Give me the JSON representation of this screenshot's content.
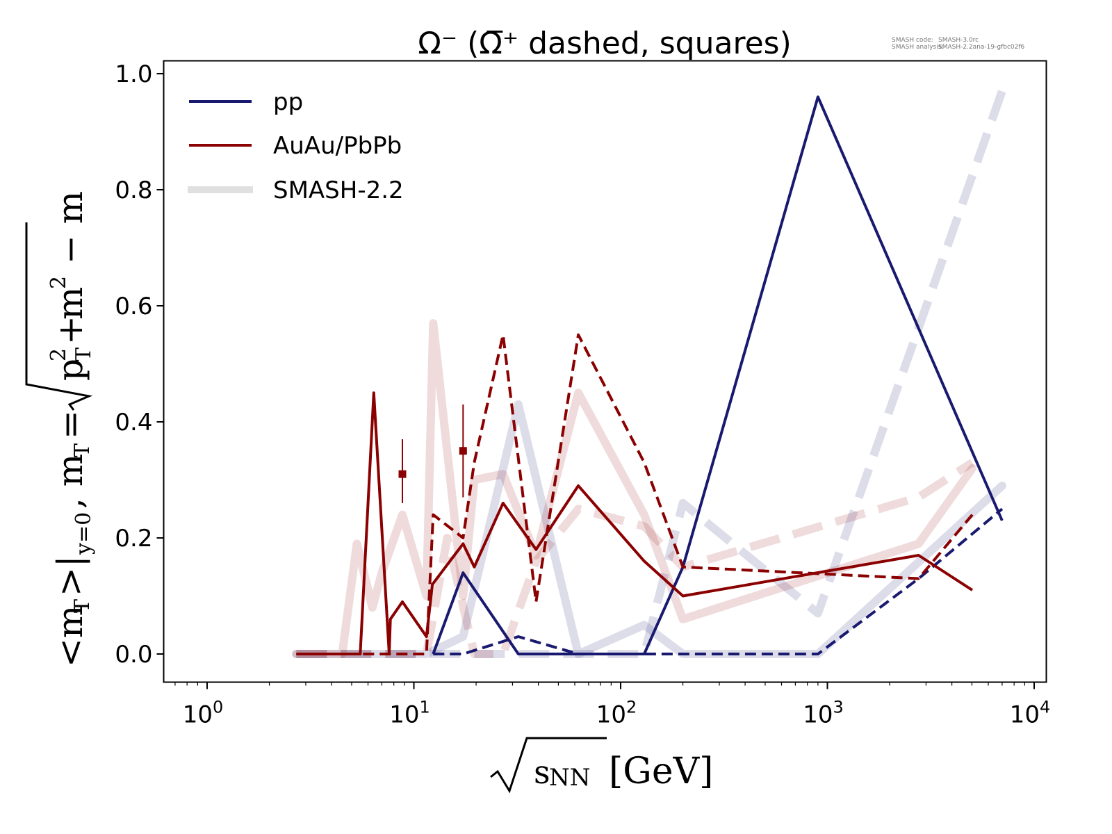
{
  "chart_data": {
    "type": "line",
    "title": "Ω⁻ (Ω̅⁺ dashed, squares)",
    "xlabel": "√s_NN [GeV]",
    "ylabel": "<m_T>|_{y=0}, m_T = √(p_T² + m²) − m",
    "xscale": "log",
    "xlim": [
      0.65,
      11000
    ],
    "ylim": [
      -0.05,
      1.04
    ],
    "x_ticks": [
      {
        "value": 1,
        "base": "10",
        "exp": "0"
      },
      {
        "value": 10,
        "base": "10",
        "exp": "1"
      },
      {
        "value": 100,
        "base": "10",
        "exp": "2"
      },
      {
        "value": 1000,
        "base": "10",
        "exp": "3"
      },
      {
        "value": 10000,
        "base": "10",
        "exp": "4"
      }
    ],
    "y_ticks": [
      "0.0",
      "0.2",
      "0.4",
      "0.6",
      "0.8",
      "1.0"
    ],
    "y_tick_values": [
      0.0,
      0.2,
      0.4,
      0.6,
      0.8,
      1.0
    ],
    "legend": {
      "position": "top-left",
      "entries": [
        {
          "label": "pp",
          "color": "#191970",
          "style": "line"
        },
        {
          "label": "AuAu/PbPb",
          "color": "#8b0000",
          "style": "line"
        },
        {
          "label": "SMASH-2.2",
          "color": "#e0e0e0",
          "style": "thick-line"
        }
      ]
    },
    "series": [
      {
        "name": "SMASH-2.2 pp Ω⁻",
        "color": "#191970",
        "opacity": 0.15,
        "role": "smash",
        "dashed": false,
        "x": [
          2.7,
          7.7,
          11.5,
          17.3,
          32,
          62.4,
          130,
          200,
          900,
          7000
        ],
        "y": [
          0.0,
          0.0,
          0.0,
          0.03,
          0.43,
          0.0,
          0.05,
          0.0,
          0.0,
          0.29
        ]
      },
      {
        "name": "SMASH-2.2 pp Ω̅⁺",
        "color": "#191970",
        "opacity": 0.15,
        "role": "smash",
        "dashed": true,
        "x": [
          2.7,
          7.7,
          11.5,
          17.3,
          27,
          62.4,
          130,
          200,
          900,
          7000
        ],
        "y": [
          0.0,
          0.0,
          0.0,
          0.0,
          0.0,
          0.0,
          0.0,
          0.26,
          0.07,
          0.97
        ]
      },
      {
        "name": "SMASH-2.2 AuAu/PbPb Ω⁻",
        "color": "#8b0000",
        "opacity": 0.14,
        "role": "smash",
        "dashed": false,
        "x": [
          2.7,
          4.5,
          5.3,
          6.3,
          7.0,
          8.8,
          11.5,
          12.4,
          17.3,
          19.6,
          27,
          39,
          62.4,
          130,
          200,
          2760,
          5020
        ],
        "y": [
          0.0,
          0.0,
          0.19,
          0.08,
          0.14,
          0.24,
          0.1,
          0.57,
          0.1,
          0.3,
          0.31,
          0.17,
          0.45,
          0.24,
          0.06,
          0.19,
          0.32
        ]
      },
      {
        "name": "SMASH-2.2 AuAu/PbPb Ω̅⁺",
        "color": "#8b0000",
        "opacity": 0.14,
        "role": "smash",
        "dashed": true,
        "x": [
          2.7,
          11.5,
          14.5,
          19.6,
          27,
          39,
          62.4,
          130,
          200,
          2760,
          5020
        ],
        "y": [
          0.0,
          0.0,
          0.2,
          0.0,
          0.0,
          0.16,
          0.25,
          0.22,
          0.15,
          0.27,
          0.33
        ]
      },
      {
        "name": "pp Ω⁻",
        "color": "#191970",
        "opacity": 1,
        "role": "data",
        "dashed": false,
        "x": [
          12.4,
          17.3,
          32,
          62.4,
          130,
          200,
          900,
          7000
        ],
        "y": [
          0.0,
          0.14,
          0.0,
          0.0,
          0.0,
          0.15,
          0.96,
          0.23
        ]
      },
      {
        "name": "pp Ω̅⁺",
        "color": "#191970",
        "opacity": 1,
        "role": "data",
        "dashed": true,
        "x": [
          12.4,
          17.3,
          32,
          62.4,
          130,
          200,
          900,
          2760,
          7000
        ],
        "y": [
          0.0,
          0.0,
          0.03,
          0.0,
          0.0,
          0.0,
          0.0,
          0.13,
          0.25
        ]
      },
      {
        "name": "AuAu/PbPb Ω⁻",
        "color": "#8b0000",
        "opacity": 1,
        "role": "data",
        "dashed": false,
        "x": [
          2.7,
          5.5,
          6.4,
          7.6,
          7.7,
          8.8,
          11.5,
          12.3,
          17.3,
          19.6,
          27,
          39,
          62.4,
          130,
          200,
          2760,
          5020
        ],
        "y": [
          0.0,
          0.0,
          0.45,
          0.0,
          0.06,
          0.09,
          0.03,
          0.12,
          0.19,
          0.15,
          0.26,
          0.18,
          0.29,
          0.16,
          0.1,
          0.17,
          0.11
        ]
      },
      {
        "name": "AuAu/PbPb Ω̅⁺",
        "color": "#8b0000",
        "opacity": 1,
        "role": "data",
        "dashed": true,
        "x": [
          2.7,
          11.5,
          12.4,
          17.3,
          19.6,
          27,
          39,
          62.4,
          130,
          200,
          2760,
          5020
        ],
        "y": [
          0.0,
          0.0,
          0.24,
          0.2,
          0.33,
          0.55,
          0.09,
          0.55,
          0.33,
          0.15,
          0.13,
          0.24
        ]
      }
    ],
    "error_points": [
      {
        "name": "Ω̅⁺ square 1",
        "x": 8.8,
        "y": 0.31,
        "yerr_low": 0.26,
        "yerr_high": 0.37,
        "color": "#8b0000"
      },
      {
        "name": "Ω̅⁺ square 2",
        "x": 17.3,
        "y": 0.35,
        "yerr_low": 0.27,
        "yerr_high": 0.43,
        "color": "#8b0000"
      }
    ]
  },
  "meta": {
    "code_label": "SMASH code:",
    "code_value": "SMASH-3.0rc",
    "analysis_label": "SMASH analysis:",
    "analysis_value": "SMASH-2.2ana-19-gfbc02f6"
  }
}
